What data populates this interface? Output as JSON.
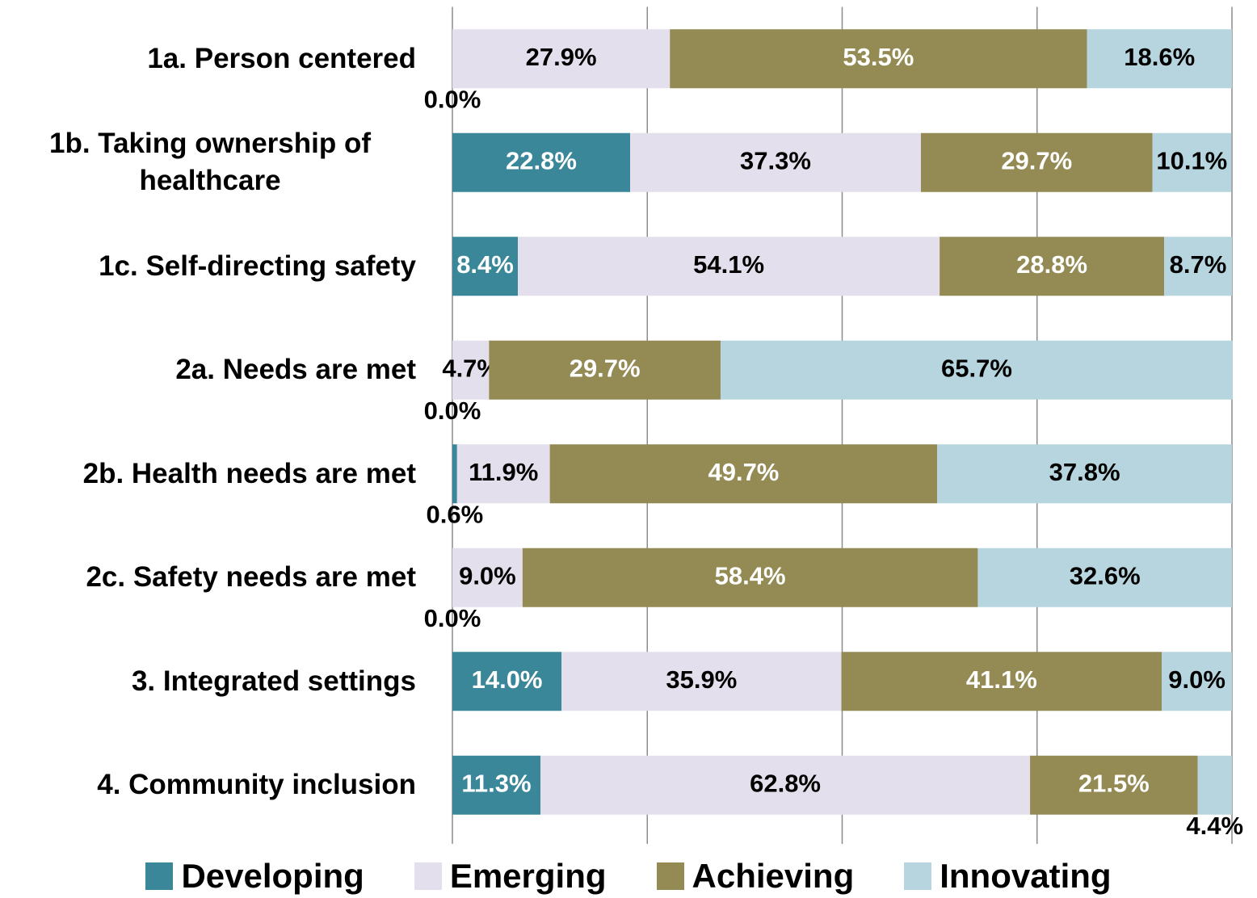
{
  "chart_data": {
    "type": "stacked-bar-horizontal",
    "categories": [
      "1a. Person centered",
      "1b. Taking ownership of healthcare",
      "1c. Self-directing safety",
      "2a. Needs are met",
      "2b. Health needs are met",
      "2c. Safety needs are met",
      "3. Integrated settings",
      "4. Community inclusion"
    ],
    "series": [
      {
        "name": "Developing",
        "color": "#3a8799",
        "label_color": "#ffffff",
        "values": [
          0.0,
          22.8,
          8.4,
          0.0,
          0.6,
          0.0,
          14.0,
          11.3
        ],
        "value_labels": [
          "0.0%",
          "22.8%",
          "8.4%",
          "0.0%",
          "0.6%",
          "0.0%",
          "14.0%",
          "11.3%"
        ]
      },
      {
        "name": "Emerging",
        "color": "#e4dfec",
        "label_color": "#000000",
        "values": [
          27.9,
          37.3,
          54.1,
          4.7,
          11.9,
          9.0,
          35.9,
          62.8
        ],
        "value_labels": [
          "27.9%",
          "37.3%",
          "54.1%",
          "4.7%",
          "11.9%",
          "9.0%",
          "35.9%",
          "62.8%"
        ]
      },
      {
        "name": "Achieving",
        "color": "#948a54",
        "label_color": "#ffffff",
        "values": [
          53.5,
          29.7,
          28.8,
          29.7,
          49.7,
          58.4,
          41.1,
          21.5
        ],
        "value_labels": [
          "53.5%",
          "29.7%",
          "28.8%",
          "29.7%",
          "49.7%",
          "58.4%",
          "41.1%",
          "21.5%"
        ]
      },
      {
        "name": "Innovating",
        "color": "#b7d5df",
        "label_color": "#000000",
        "values": [
          18.6,
          10.1,
          8.7,
          65.7,
          37.8,
          32.6,
          9.0,
          4.4
        ],
        "value_labels": [
          "18.6%",
          "10.1%",
          "8.7%",
          "65.7%",
          "37.8%",
          "32.6%",
          "9.0%",
          "4.4%"
        ]
      }
    ],
    "xlim": [
      0,
      100
    ],
    "xticks": [
      0,
      25,
      50,
      75,
      100
    ],
    "grid": true,
    "legend": "bottom"
  }
}
